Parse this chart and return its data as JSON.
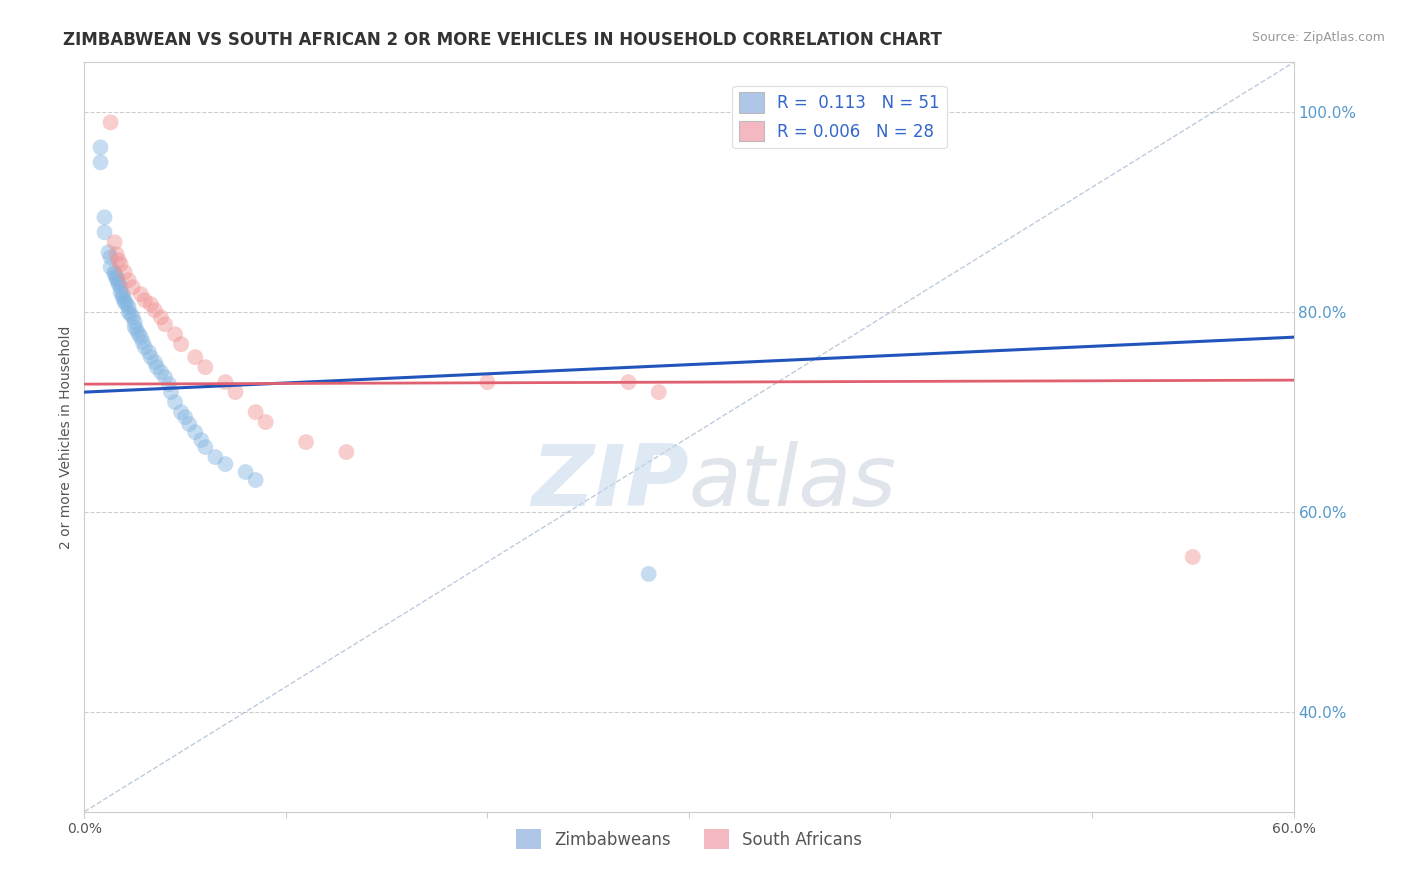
{
  "title": "ZIMBABWEAN VS SOUTH AFRICAN 2 OR MORE VEHICLES IN HOUSEHOLD CORRELATION CHART",
  "source": "Source: ZipAtlas.com",
  "ylabel": "2 or more Vehicles in Household",
  "xlim": [
    0.0,
    0.6
  ],
  "ylim": [
    0.3,
    1.05
  ],
  "x_ticks": [
    0.0,
    0.1,
    0.2,
    0.3,
    0.4,
    0.5,
    0.6
  ],
  "x_tick_labels": [
    "0.0%",
    "",
    "",
    "",
    "",
    "",
    "60.0%"
  ],
  "y_ticks": [
    0.4,
    0.6,
    0.8,
    1.0
  ],
  "y_tick_labels": [
    "40.0%",
    "60.0%",
    "80.0%",
    "100.0%"
  ],
  "legend_entries": [
    {
      "label": "R =  0.113   N = 51",
      "color": "#aec6e8"
    },
    {
      "label": "R = 0.006   N = 28",
      "color": "#f4b8c1"
    }
  ],
  "bottom_legend": [
    {
      "label": "Zimbabweans",
      "color": "#aec6e8"
    },
    {
      "label": "South Africans",
      "color": "#f4b8c1"
    }
  ],
  "blue_scatter_x": [
    0.008,
    0.008,
    0.01,
    0.01,
    0.012,
    0.013,
    0.013,
    0.015,
    0.015,
    0.016,
    0.016,
    0.017,
    0.017,
    0.018,
    0.018,
    0.019,
    0.019,
    0.02,
    0.02,
    0.021,
    0.022,
    0.022,
    0.023,
    0.024,
    0.025,
    0.025,
    0.026,
    0.027,
    0.028,
    0.029,
    0.03,
    0.032,
    0.033,
    0.035,
    0.036,
    0.038,
    0.04,
    0.042,
    0.043,
    0.045,
    0.048,
    0.05,
    0.052,
    0.055,
    0.058,
    0.06,
    0.065,
    0.07,
    0.08,
    0.085,
    0.28
  ],
  "blue_scatter_y": [
    0.965,
    0.95,
    0.895,
    0.88,
    0.86,
    0.855,
    0.845,
    0.84,
    0.838,
    0.835,
    0.833,
    0.83,
    0.828,
    0.825,
    0.82,
    0.818,
    0.815,
    0.812,
    0.81,
    0.808,
    0.805,
    0.8,
    0.798,
    0.795,
    0.79,
    0.785,
    0.782,
    0.778,
    0.775,
    0.77,
    0.765,
    0.76,
    0.755,
    0.75,
    0.745,
    0.74,
    0.735,
    0.728,
    0.72,
    0.71,
    0.7,
    0.695,
    0.688,
    0.68,
    0.672,
    0.665,
    0.655,
    0.648,
    0.64,
    0.632,
    0.538
  ],
  "pink_scatter_x": [
    0.013,
    0.015,
    0.016,
    0.017,
    0.018,
    0.02,
    0.022,
    0.024,
    0.028,
    0.03,
    0.033,
    0.035,
    0.038,
    0.04,
    0.045,
    0.048,
    0.055,
    0.06,
    0.07,
    0.075,
    0.085,
    0.09,
    0.11,
    0.13,
    0.2,
    0.27,
    0.285,
    0.55
  ],
  "pink_scatter_y": [
    0.99,
    0.87,
    0.858,
    0.852,
    0.848,
    0.84,
    0.832,
    0.825,
    0.818,
    0.812,
    0.808,
    0.802,
    0.795,
    0.788,
    0.778,
    0.768,
    0.755,
    0.745,
    0.73,
    0.72,
    0.7,
    0.69,
    0.67,
    0.66,
    0.73,
    0.73,
    0.72,
    0.555
  ],
  "blue_line_x": [
    0.0,
    0.6
  ],
  "blue_line_y": [
    0.72,
    0.775
  ],
  "pink_line_x": [
    0.0,
    0.6
  ],
  "pink_line_y": [
    0.728,
    0.732
  ],
  "diag_line_x": [
    0.0,
    0.6
  ],
  "diag_line_y": [
    0.3,
    1.05
  ],
  "background_color": "#ffffff",
  "plot_bg_color": "#ffffff",
  "grid_color": "#c8c8c8",
  "scatter_size": 130,
  "scatter_alpha": 0.45,
  "blue_color": "#82b4e0",
  "pink_color": "#f09090",
  "blue_line_color": "#2255bb",
  "pink_line_color": "#e06070",
  "diag_line_color": "#90aac8",
  "title_fontsize": 12,
  "axis_label_fontsize": 10,
  "tick_fontsize": 10,
  "watermark_zip": "ZIP",
  "watermark_atlas": "atlas",
  "watermark_color_zip": "#c5d8ec",
  "watermark_color_atlas": "#c5d0dc"
}
